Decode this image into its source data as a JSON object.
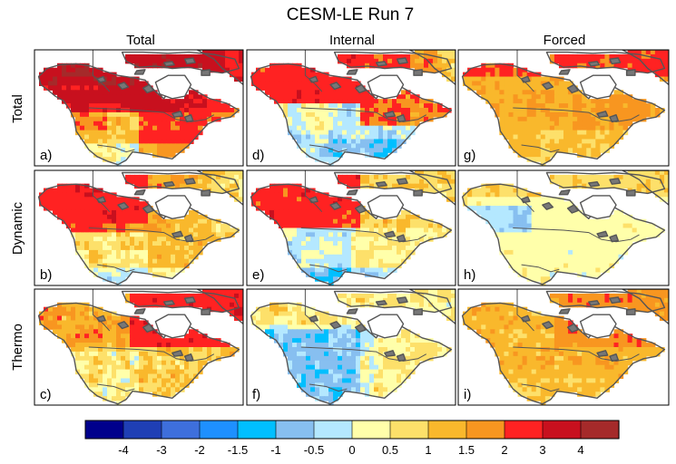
{
  "chart_data": {
    "type": "heatmap",
    "title": "CESM-LE Run 7",
    "columns": [
      "Total",
      "Internal",
      "Forced"
    ],
    "rows": [
      "Total",
      "Dynamic",
      "Thermo"
    ],
    "panels": [
      {
        "label": "a)",
        "row": "Total",
        "column": "Total",
        "pattern": "total_total",
        "level": 3
      },
      {
        "label": "d)",
        "row": "Total",
        "column": "Internal",
        "pattern": "total_internal",
        "level": 3
      },
      {
        "label": "g)",
        "row": "Total",
        "column": "Forced",
        "pattern": "total_forced",
        "level": 2
      },
      {
        "label": "b)",
        "row": "Dynamic",
        "column": "Total",
        "pattern": "dyn_total",
        "level": 2
      },
      {
        "label": "e)",
        "row": "Dynamic",
        "column": "Internal",
        "pattern": "dyn_internal",
        "level": 2
      },
      {
        "label": "h)",
        "row": "Dynamic",
        "column": "Forced",
        "pattern": "dyn_forced",
        "level": 0.5
      },
      {
        "label": "c)",
        "row": "Thermo",
        "column": "Total",
        "pattern": "thermo_total",
        "level": 1.5
      },
      {
        "label": "f)",
        "row": "Thermo",
        "column": "Internal",
        "pattern": "thermo_internal",
        "level": 0
      },
      {
        "label": "i)",
        "row": "Thermo",
        "column": "Forced",
        "pattern": "thermo_forced",
        "level": 1.5
      }
    ],
    "colorbar": {
      "colors": [
        "#00008c",
        "#1f3fb5",
        "#3e6fdc",
        "#1e90ff",
        "#00bfff",
        "#87bff0",
        "#b4e8ff",
        "#ffffaa",
        "#fde06a",
        "#f9b82c",
        "#f89620",
        "#ff2222",
        "#c8101e",
        "#a52a2a"
      ],
      "tick_labels": [
        "-4",
        "-3",
        "-2",
        "-1.5",
        "-1",
        "-0.5",
        "0",
        "0.5",
        "1",
        "1.5",
        "2",
        "3",
        "4"
      ]
    }
  }
}
